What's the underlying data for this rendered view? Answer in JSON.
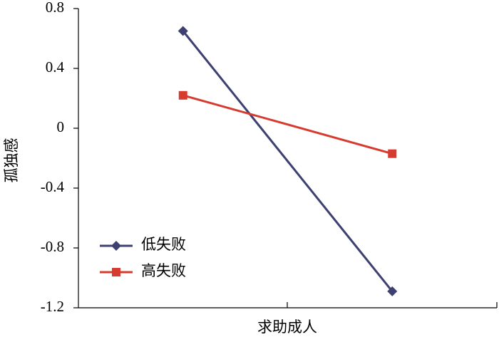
{
  "chart_data": {
    "type": "line",
    "xlabel": "求助成人",
    "ylabel": "孤独感",
    "categories": [
      null,
      null
    ],
    "series": [
      {
        "name": "低失败",
        "color": "#3d4070",
        "marker": "diamond",
        "values": [
          0.65,
          -1.09
        ]
      },
      {
        "name": "高失败",
        "color": "#d63b2f",
        "marker": "square",
        "values": [
          0.22,
          -0.17
        ]
      }
    ],
    "ylim": [
      -1.2,
      0.8
    ],
    "yticks": [
      -1.2,
      -0.8,
      -0.4,
      0,
      0.4,
      0.8
    ],
    "grid": false,
    "legend": "lower left"
  }
}
